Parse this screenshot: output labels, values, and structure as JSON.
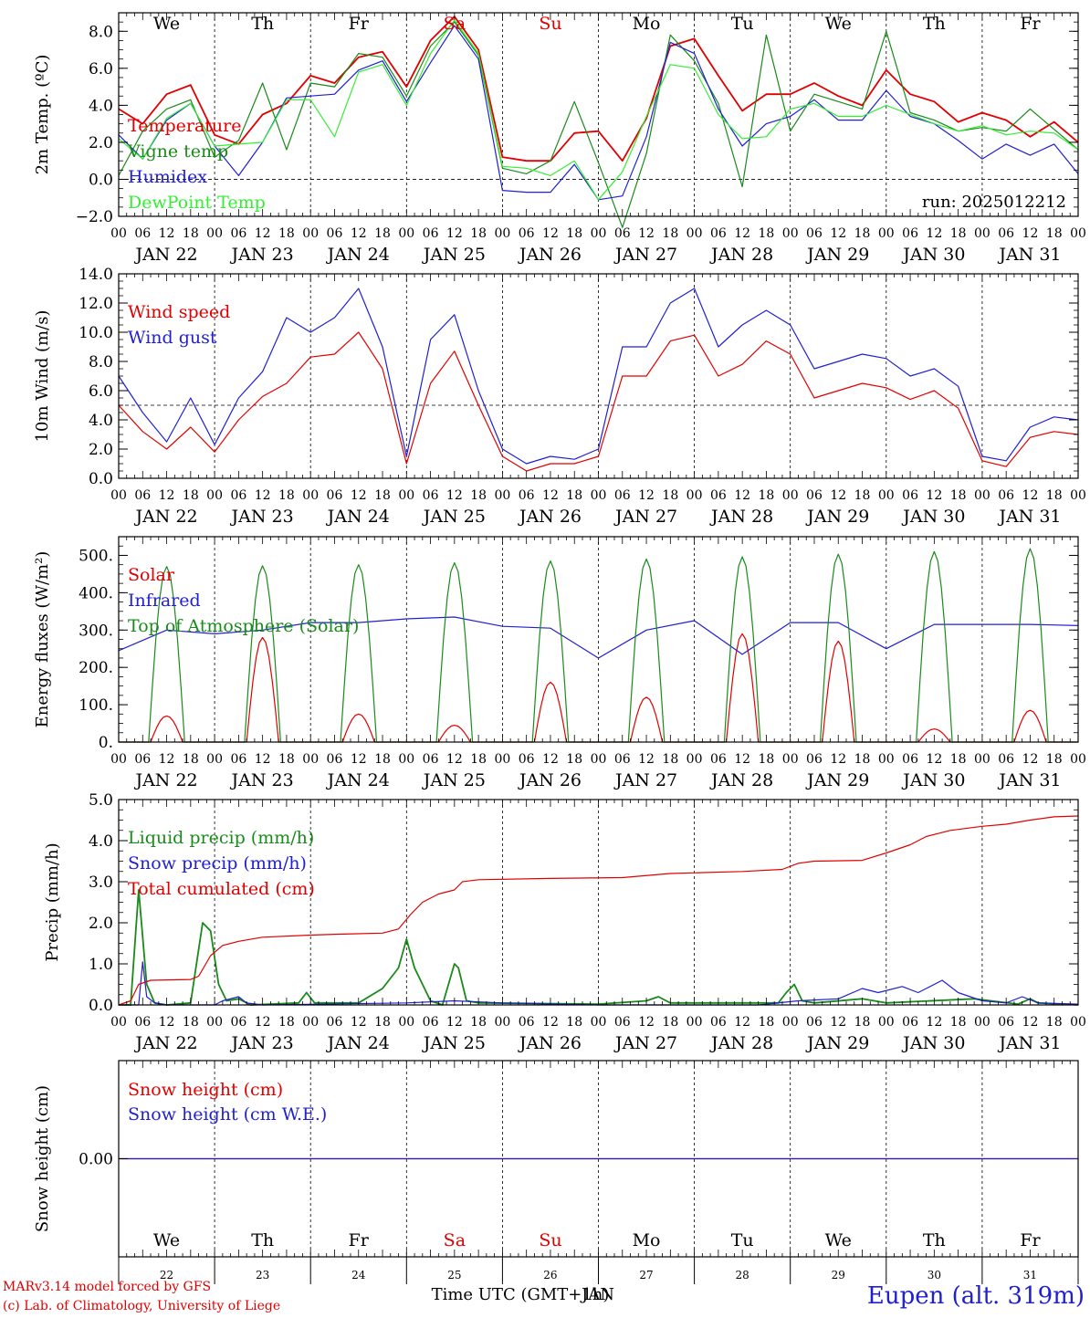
{
  "days": [
    "22",
    "23",
    "24",
    "25",
    "26",
    "27",
    "28",
    "29",
    "30",
    "31"
  ],
  "weekdays": [
    "We",
    "Th",
    "Fr",
    "Sa",
    "Su",
    "Mo",
    "Tu",
    "We",
    "Th",
    "Fr"
  ],
  "weekday_colors": [
    "#000000",
    "#000000",
    "#000000",
    "#e00000",
    "#e00000",
    "#000000",
    "#000000",
    "#000000",
    "#000000",
    "#000000"
  ],
  "hour_ticks": [
    "00",
    "06",
    "12",
    "18"
  ],
  "month_label": "JAN",
  "x_axis_title": "Time UTC (GMT+1h)",
  "x_axis_overlay": "JAN",
  "credit_line1": "MARv3.14 model forced by GFS",
  "credit_line2": "(c) Lab. of Climatology, University of Liege",
  "station": "Eupen (alt. 319m)",
  "run_label": "run: 2025012212",
  "chart_data": [
    {
      "type": "line",
      "ylabel": "2m Temp. (ºC)",
      "ylim": [
        -2,
        9
      ],
      "yticks": [
        -2,
        0,
        2,
        4,
        6,
        8
      ],
      "ytick_labels": [
        "−2.0",
        "0.0",
        "2.0",
        "4.0",
        "6.0",
        "8.0"
      ],
      "reference_line": 0,
      "x_hours": [
        0,
        6,
        12,
        18,
        24,
        30,
        36,
        42,
        48,
        54,
        60,
        66,
        72,
        78,
        84,
        90,
        96,
        102,
        108,
        114,
        120,
        126,
        132,
        138,
        144,
        150,
        156,
        162,
        168,
        174,
        180,
        186,
        192,
        198,
        204,
        210,
        216,
        222,
        228,
        234,
        240
      ],
      "series": [
        {
          "name": "Temperature",
          "color": "#e00000",
          "values": [
            3.8,
            3.0,
            4.6,
            5.1,
            2.4,
            1.9,
            3.5,
            4.1,
            5.6,
            5.2,
            6.6,
            6.9,
            5.0,
            7.5,
            8.8,
            7.0,
            1.2,
            1.0,
            1.0,
            2.5,
            2.6,
            1.0,
            3.3,
            7.2,
            7.6,
            5.6,
            3.7,
            4.6,
            4.6,
            5.2,
            4.5,
            4.0,
            5.9,
            4.6,
            4.2,
            3.1,
            3.6,
            3.2,
            2.3,
            3.1,
            2.0
          ]
        },
        {
          "name": "Vigne temp",
          "color": "#1a8a1a",
          "values": [
            0.2,
            2.6,
            3.8,
            4.3,
            1.2,
            2.1,
            5.2,
            1.6,
            5.2,
            5.0,
            6.8,
            6.6,
            4.5,
            7.2,
            8.5,
            6.7,
            0.6,
            0.3,
            1.0,
            4.2,
            0.9,
            -2.6,
            1.4,
            7.8,
            6.4,
            4.1,
            -0.4,
            7.8,
            2.6,
            4.6,
            4.2,
            3.8,
            8.0,
            3.6,
            3.2,
            2.6,
            2.8,
            2.6,
            3.8,
            2.7,
            1.6
          ]
        },
        {
          "name": "Humidex",
          "color": "#2020d0",
          "values": [
            2.4,
            1.1,
            3.2,
            4.1,
            1.8,
            0.2,
            2.0,
            4.4,
            4.5,
            4.6,
            5.9,
            6.4,
            4.2,
            6.3,
            8.3,
            6.5,
            -0.6,
            -0.7,
            -0.7,
            0.8,
            -1.1,
            -0.9,
            2.3,
            7.4,
            6.8,
            3.8,
            1.8,
            3.0,
            3.4,
            4.3,
            3.2,
            3.2,
            4.8,
            3.4,
            3.0,
            2.1,
            1.1,
            1.9,
            1.3,
            1.9,
            0.3
          ]
        },
        {
          "name": "DewPoint Temp",
          "color": "#33ee33",
          "values": [
            2.2,
            1.1,
            3.3,
            4.1,
            1.8,
            1.9,
            2.0,
            4.3,
            4.3,
            2.3,
            5.8,
            6.2,
            4.0,
            6.8,
            8.6,
            6.8,
            0.7,
            0.6,
            0.2,
            1.0,
            -1.1,
            0.4,
            3.4,
            6.2,
            6.0,
            3.5,
            2.2,
            2.3,
            3.8,
            4.1,
            3.4,
            3.4,
            4.0,
            3.5,
            3.0,
            2.6,
            2.9,
            2.4,
            2.6,
            2.5,
            1.6
          ]
        }
      ]
    },
    {
      "type": "line",
      "ylabel": "10m Wind (m/s)",
      "ylim": [
        0,
        14
      ],
      "yticks": [
        0,
        2,
        4,
        6,
        8,
        10,
        12,
        14
      ],
      "ytick_labels": [
        "0.0",
        "2.0",
        "4.0",
        "6.0",
        "8.0",
        "10.0",
        "12.0",
        "14.0"
      ],
      "reference_line": 5,
      "x_hours": [
        0,
        6,
        12,
        18,
        24,
        30,
        36,
        42,
        48,
        54,
        60,
        66,
        72,
        78,
        84,
        90,
        96,
        102,
        108,
        114,
        120,
        126,
        132,
        138,
        144,
        150,
        156,
        162,
        168,
        174,
        180,
        186,
        192,
        198,
        204,
        210,
        216,
        222,
        228,
        234,
        240
      ],
      "series": [
        {
          "name": "Wind speed",
          "color": "#e00000",
          "values": [
            5.0,
            3.2,
            2.0,
            3.5,
            1.8,
            4.0,
            5.6,
            6.5,
            8.3,
            8.5,
            10.0,
            7.5,
            1.0,
            6.5,
            8.7,
            5.0,
            1.5,
            0.5,
            1.0,
            1.0,
            1.5,
            7.0,
            7.0,
            9.4,
            9.8,
            7.0,
            7.8,
            9.4,
            8.5,
            5.5,
            6.0,
            6.5,
            6.2,
            5.4,
            6.0,
            4.8,
            1.2,
            0.8,
            2.8,
            3.2,
            3.0
          ]
        },
        {
          "name": "Wind gust",
          "color": "#2020d0",
          "values": [
            7.0,
            4.5,
            2.5,
            5.5,
            2.3,
            5.5,
            7.3,
            11.0,
            10.0,
            11.0,
            13.0,
            9.0,
            1.5,
            9.5,
            11.2,
            6.0,
            2.0,
            1.0,
            1.5,
            1.3,
            2.0,
            9.0,
            9.0,
            12.0,
            13.0,
            9.0,
            10.5,
            11.5,
            10.5,
            7.5,
            8.0,
            8.5,
            8.2,
            7.0,
            7.5,
            6.3,
            1.5,
            1.2,
            3.5,
            4.2,
            4.0
          ]
        }
      ]
    },
    {
      "type": "line",
      "ylabel": "Energy fluxes (W/m²)",
      "ylim": [
        0,
        550
      ],
      "yticks": [
        0,
        100,
        200,
        300,
        400,
        500
      ],
      "ytick_labels": [
        "0.",
        "100.",
        "200.",
        "300.",
        "400.",
        "500."
      ],
      "series": [
        {
          "name": "Solar",
          "color": "#e00000",
          "peaks": [
            70,
            280,
            75,
            45,
            160,
            120,
            290,
            270,
            35,
            85
          ]
        },
        {
          "name": "Infrared",
          "color": "#2020d0",
          "values": [
            245,
            300,
            290,
            300,
            320,
            320,
            330,
            335,
            310,
            305,
            225,
            300,
            325,
            235,
            320,
            320,
            250,
            315,
            315,
            315,
            312
          ]
        },
        {
          "name": "Top of Atmosphere (Solar)",
          "color": "#1a8a1a",
          "peaks": [
            470,
            472,
            475,
            480,
            485,
            490,
            496,
            503,
            510,
            518
          ]
        }
      ]
    },
    {
      "type": "line",
      "ylabel": "Precip (mm/h)",
      "ylim": [
        0,
        5
      ],
      "yticks": [
        0,
        1,
        2,
        3,
        4,
        5
      ],
      "ytick_labels": [
        "0.0",
        "1.0",
        "2.0",
        "3.0",
        "4.0",
        "5.0"
      ],
      "series": [
        {
          "name": "Liquid precip (mm/h)",
          "color": "#1a8a1a",
          "points": [
            [
              0,
              0
            ],
            [
              3,
              0
            ],
            [
              5,
              2.8
            ],
            [
              7,
              0.5
            ],
            [
              9,
              0.05
            ],
            [
              12,
              0
            ],
            [
              18,
              0.05
            ],
            [
              21,
              2.0
            ],
            [
              23,
              1.8
            ],
            [
              25,
              0.5
            ],
            [
              27,
              0.1
            ],
            [
              30,
              0.15
            ],
            [
              33,
              0.0
            ],
            [
              45,
              0.05
            ],
            [
              47,
              0.3
            ],
            [
              49,
              0.05
            ],
            [
              60,
              0.05
            ],
            [
              66,
              0.4
            ],
            [
              70,
              0.9
            ],
            [
              72,
              1.6
            ],
            [
              74,
              0.9
            ],
            [
              78,
              0.1
            ],
            [
              81,
              0.0
            ],
            [
              84,
              1.0
            ],
            [
              85,
              0.9
            ],
            [
              87,
              0.1
            ],
            [
              90,
              0.05
            ],
            [
              120,
              0.02
            ],
            [
              132,
              0.1
            ],
            [
              135,
              0.2
            ],
            [
              138,
              0.05
            ],
            [
              160,
              0.05
            ],
            [
              165,
              0.05
            ],
            [
              167,
              0.3
            ],
            [
              168,
              0.4
            ],
            [
              169,
              0.5
            ],
            [
              171,
              0.1
            ],
            [
              174,
              0.05
            ],
            [
              186,
              0.15
            ],
            [
              192,
              0.05
            ],
            [
              214,
              0.15
            ],
            [
              225,
              0.02
            ],
            [
              228,
              0.15
            ],
            [
              230,
              0.05
            ],
            [
              240,
              0
            ]
          ]
        },
        {
          "name": "Snow precip (mm/h)",
          "color": "#2020d0",
          "points": [
            [
              0,
              0
            ],
            [
              5,
              0
            ],
            [
              6,
              1.05
            ],
            [
              7,
              0.2
            ],
            [
              9,
              0.05
            ],
            [
              12,
              0
            ],
            [
              24,
              0
            ],
            [
              26,
              0.1
            ],
            [
              30,
              0.2
            ],
            [
              32,
              0.05
            ],
            [
              36,
              0
            ],
            [
              72,
              0.05
            ],
            [
              84,
              0.1
            ],
            [
              96,
              0.05
            ],
            [
              120,
              0
            ],
            [
              160,
              0
            ],
            [
              170,
              0.1
            ],
            [
              180,
              0.15
            ],
            [
              186,
              0.4
            ],
            [
              190,
              0.3
            ],
            [
              196,
              0.45
            ],
            [
              200,
              0.3
            ],
            [
              206,
              0.6
            ],
            [
              210,
              0.3
            ],
            [
              216,
              0.1
            ],
            [
              222,
              0.05
            ],
            [
              226,
              0.2
            ],
            [
              230,
              0.05
            ],
            [
              240,
              0.02
            ]
          ]
        },
        {
          "name": "Total cumulated (cm)",
          "color": "#e00000",
          "points": [
            [
              0,
              0
            ],
            [
              3,
              0.1
            ],
            [
              5,
              0.5
            ],
            [
              8,
              0.6
            ],
            [
              18,
              0.62
            ],
            [
              20,
              0.7
            ],
            [
              23,
              1.2
            ],
            [
              26,
              1.45
            ],
            [
              30,
              1.55
            ],
            [
              36,
              1.65
            ],
            [
              48,
              1.7
            ],
            [
              54,
              1.72
            ],
            [
              66,
              1.75
            ],
            [
              70,
              1.85
            ],
            [
              73,
              2.2
            ],
            [
              76,
              2.5
            ],
            [
              80,
              2.7
            ],
            [
              84,
              2.8
            ],
            [
              86,
              3.0
            ],
            [
              90,
              3.05
            ],
            [
              108,
              3.08
            ],
            [
              126,
              3.1
            ],
            [
              138,
              3.2
            ],
            [
              156,
              3.25
            ],
            [
              166,
              3.3
            ],
            [
              170,
              3.45
            ],
            [
              174,
              3.5
            ],
            [
              186,
              3.52
            ],
            [
              192,
              3.7
            ],
            [
              198,
              3.9
            ],
            [
              202,
              4.1
            ],
            [
              208,
              4.25
            ],
            [
              216,
              4.35
            ],
            [
              222,
              4.4
            ],
            [
              228,
              4.5
            ],
            [
              234,
              4.58
            ],
            [
              240,
              4.6
            ]
          ]
        }
      ]
    },
    {
      "type": "line",
      "ylabel": "Snow height (cm)",
      "ytick_labels": [
        "0.00"
      ],
      "series": [
        {
          "name": "Snow height (cm)",
          "color": "#e00000",
          "values": [
            0,
            0
          ]
        },
        {
          "name": "Snow height (cm W.E.)",
          "color": "#2020d0",
          "values": [
            0,
            0
          ]
        }
      ]
    }
  ]
}
